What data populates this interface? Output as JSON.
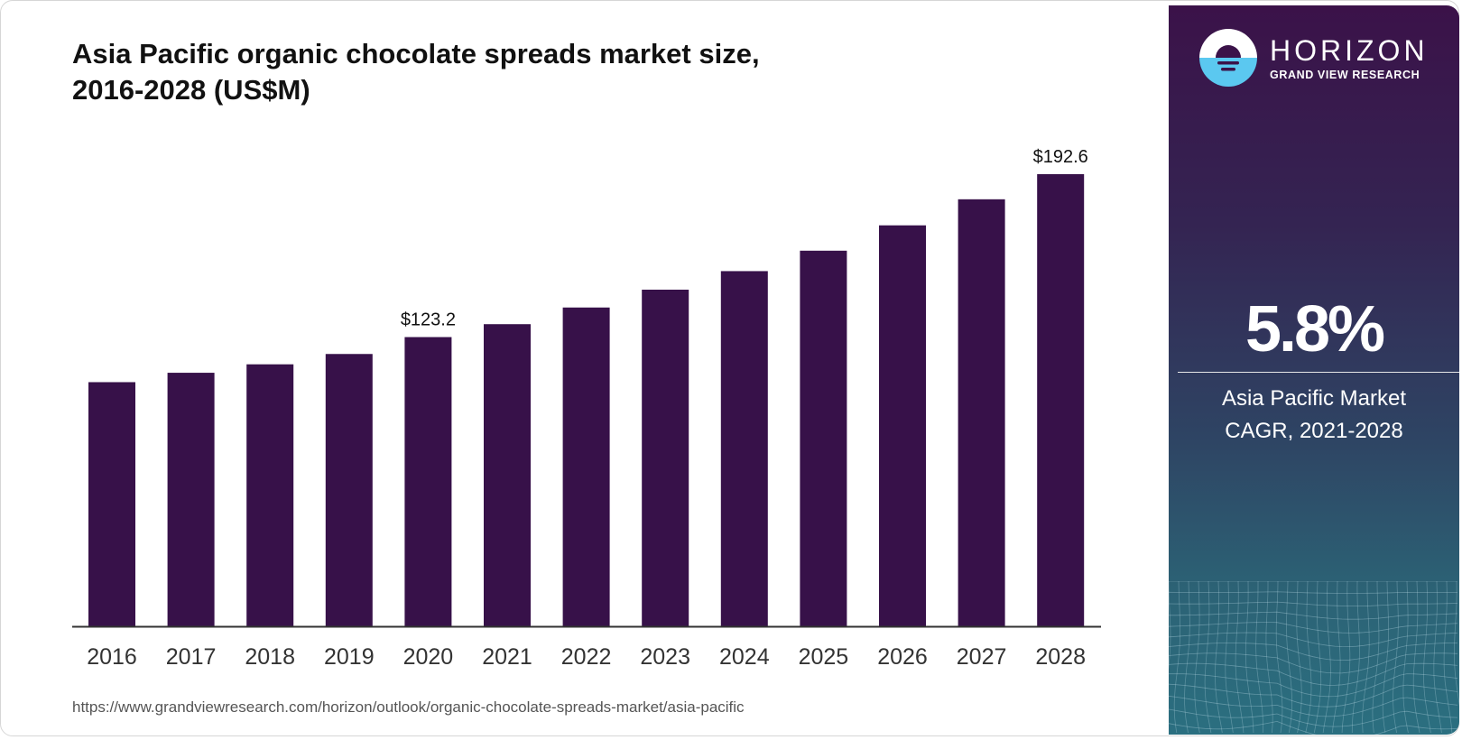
{
  "title_line1": "Asia Pacific organic chocolate spreads market size,",
  "title_line2": "2016-2028 (US$M)",
  "source": "https://www.grandviewresearch.com/horizon/outlook/organic-chocolate-spreads-market/asia-pacific",
  "brand": {
    "name": "HORIZON",
    "sub": "GRAND VIEW RESEARCH"
  },
  "stat": {
    "value": "5.8%",
    "label_line1": "Asia Pacific Market",
    "label_line2": "CAGR, 2021-2028"
  },
  "colors": {
    "bar": "#371149",
    "axis": "#333333"
  },
  "chart_data": {
    "type": "bar",
    "title": "Asia Pacific organic chocolate spreads market size, 2016-2028 (US$M)",
    "xlabel": "",
    "ylabel": "",
    "categories": [
      "2016",
      "2017",
      "2018",
      "2019",
      "2020",
      "2021",
      "2022",
      "2023",
      "2024",
      "2025",
      "2026",
      "2027",
      "2028"
    ],
    "values": [
      104.0,
      108.0,
      111.6,
      116.0,
      123.2,
      128.7,
      135.8,
      143.4,
      151.3,
      160.0,
      170.8,
      181.9,
      192.6
    ],
    "data_labels": {
      "4": "$123.2",
      "12": "$192.6"
    },
    "ylim": [
      0,
      192.6
    ],
    "grid": false
  }
}
